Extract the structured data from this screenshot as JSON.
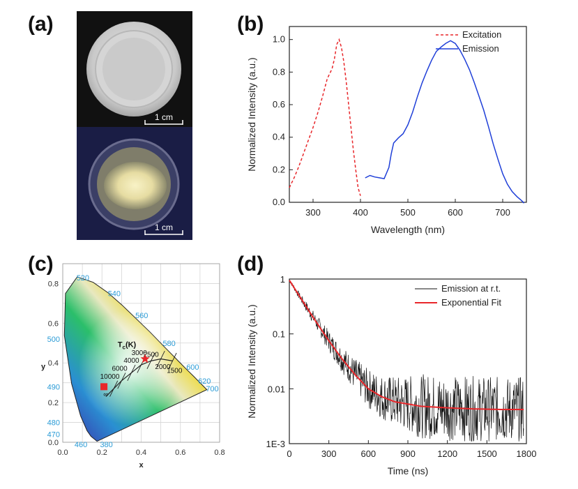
{
  "panels": {
    "a": "(a)",
    "b": "(b)",
    "c": "(c)",
    "d": "(d)"
  },
  "photo": {
    "scale_label_top": "1 cm",
    "scale_label_bottom": "1 cm"
  },
  "chart_data": [
    {
      "panel": "b",
      "type": "line",
      "xlabel": "Wavelength (nm)",
      "ylabel": "Normalized Intensity (a.u.)",
      "xlim": [
        250,
        750
      ],
      "ylim": [
        0,
        1.08
      ],
      "xticks": [
        300,
        400,
        500,
        600,
        700
      ],
      "yticks": [
        0.0,
        0.2,
        0.4,
        0.6,
        0.8,
        1.0
      ],
      "legend": "top-right",
      "series": [
        {
          "name": "Excitation",
          "color": "#e8262a",
          "style": "dashed",
          "x": [
            250,
            260,
            270,
            280,
            290,
            300,
            310,
            320,
            330,
            340,
            345,
            350,
            355,
            360,
            365,
            370,
            375,
            380,
            385,
            390,
            395,
            400
          ],
          "y": [
            0.09,
            0.15,
            0.22,
            0.3,
            0.38,
            0.46,
            0.55,
            0.65,
            0.76,
            0.82,
            0.88,
            0.97,
            1.0,
            0.95,
            0.86,
            0.74,
            0.6,
            0.46,
            0.32,
            0.2,
            0.09,
            0.04
          ]
        },
        {
          "name": "Emission",
          "color": "#1f3fd8",
          "style": "solid",
          "x": [
            410,
            420,
            430,
            440,
            450,
            460,
            465,
            470,
            480,
            490,
            500,
            510,
            520,
            530,
            540,
            550,
            560,
            570,
            580,
            590,
            600,
            610,
            620,
            630,
            640,
            650,
            660,
            670,
            680,
            690,
            700,
            710,
            720,
            730,
            740,
            745
          ],
          "y": [
            0.15,
            0.16,
            0.15,
            0.15,
            0.15,
            0.22,
            0.3,
            0.36,
            0.39,
            0.42,
            0.48,
            0.56,
            0.65,
            0.73,
            0.8,
            0.87,
            0.93,
            0.96,
            0.98,
            0.99,
            0.97,
            0.93,
            0.88,
            0.82,
            0.74,
            0.65,
            0.56,
            0.46,
            0.36,
            0.27,
            0.18,
            0.11,
            0.06,
            0.03,
            0.01,
            0.0
          ]
        }
      ]
    },
    {
      "panel": "c",
      "type": "scatter",
      "xlabel": "x",
      "ylabel": "y",
      "xlim": [
        0,
        0.8
      ],
      "ylim": [
        0,
        0.9
      ],
      "xticks": [
        0.0,
        0.2,
        0.4,
        0.6,
        0.8
      ],
      "yticks": [
        0.0,
        0.2,
        0.4,
        0.6,
        0.8
      ],
      "planck_label": "T",
      "planck_label_sub": "c",
      "planck_label_unit": "(K)",
      "locus_labels": [
        {
          "text": "520",
          "x": 0.07,
          "y": 0.83
        },
        {
          "text": "540",
          "x": 0.23,
          "y": 0.75
        },
        {
          "text": "560",
          "x": 0.37,
          "y": 0.64
        },
        {
          "text": "580",
          "x": 0.51,
          "y": 0.5
        },
        {
          "text": "600",
          "x": 0.63,
          "y": 0.38
        },
        {
          "text": "620",
          "x": 0.69,
          "y": 0.31
        },
        {
          "text": "700",
          "x": 0.73,
          "y": 0.27
        },
        {
          "text": "500",
          "x": 0.0,
          "y": 0.52
        },
        {
          "text": "490",
          "x": 0.0,
          "y": 0.28
        },
        {
          "text": "480",
          "x": 0.0,
          "y": 0.1
        },
        {
          "text": "470",
          "x": 0.0,
          "y": 0.04
        },
        {
          "text": "460",
          "x": 0.06,
          "y": -0.01
        },
        {
          "text": "380",
          "x": 0.19,
          "y": -0.01
        }
      ],
      "temp_labels": [
        {
          "text": "10000",
          "x": 0.24,
          "y": 0.32
        },
        {
          "text": "6000",
          "x": 0.29,
          "y": 0.36
        },
        {
          "text": "4000",
          "x": 0.35,
          "y": 0.4
        },
        {
          "text": "3000",
          "x": 0.39,
          "y": 0.44
        },
        {
          "text": "2500",
          "x": 0.45,
          "y": 0.43
        },
        {
          "text": "2000",
          "x": 0.51,
          "y": 0.37
        },
        {
          "text": "1500",
          "x": 0.57,
          "y": 0.35
        },
        {
          "text": "∞",
          "x": 0.22,
          "y": 0.23
        }
      ],
      "points": [
        {
          "marker": "square",
          "color": "#e8262a",
          "x": 0.21,
          "y": 0.28
        },
        {
          "marker": "star",
          "color": "#e8262a",
          "x": 0.42,
          "y": 0.42
        }
      ]
    },
    {
      "panel": "d",
      "type": "line",
      "xlabel": "Time (ns)",
      "ylabel": "Normalized Intensity (a.u.)",
      "yscale": "log",
      "xlim": [
        0,
        1800
      ],
      "ylim": [
        0.001,
        1
      ],
      "xticks": [
        0,
        300,
        600,
        900,
        1200,
        1500,
        1800
      ],
      "yticks": [
        1,
        0.1,
        0.01,
        0.001
      ],
      "ytick_labels": [
        "1",
        "0.1",
        "0.01",
        "1E-3"
      ],
      "legend": "top-right",
      "series": [
        {
          "name": "Emission at r.t.",
          "color": "#111111",
          "style": "solid",
          "noisy": true,
          "x": [
            0,
            100,
            200,
            300,
            400,
            500,
            600,
            700,
            800,
            1000,
            1200,
            1400,
            1600,
            1780
          ],
          "y": [
            0.95,
            0.4,
            0.17,
            0.075,
            0.035,
            0.018,
            0.01,
            0.0072,
            0.0058,
            0.0048,
            0.0045,
            0.0043,
            0.0042,
            0.0042
          ]
        },
        {
          "name": "Exponential Fit",
          "color": "#e8262a",
          "style": "solid",
          "x": [
            0,
            100,
            200,
            300,
            400,
            500,
            600,
            700,
            800,
            1000,
            1200,
            1400,
            1600,
            1780
          ],
          "y": [
            0.95,
            0.4,
            0.17,
            0.075,
            0.035,
            0.018,
            0.01,
            0.0072,
            0.0058,
            0.0048,
            0.0045,
            0.0043,
            0.0042,
            0.0042
          ]
        }
      ]
    }
  ]
}
